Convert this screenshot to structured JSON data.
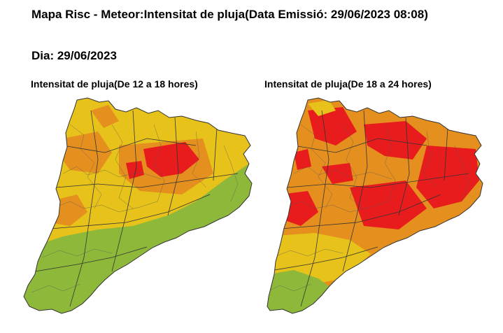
{
  "header": {
    "title": "Mapa Risc - Meteor:Intensitat de pluja(Data Emissió: 29/06/2023 08:08)",
    "day": "Dia: 29/06/2023"
  },
  "maps": [
    {
      "title": "Intensitat de pluja(De 12 a 18 hores)"
    },
    {
      "title": "Intensitat de pluja(De 18 a 24 hores)"
    }
  ],
  "colors": {
    "green": "#8db83a",
    "yellow": "#e6c21a",
    "orange": "#e5901e",
    "red": "#e81c1c",
    "border": "#333333"
  }
}
